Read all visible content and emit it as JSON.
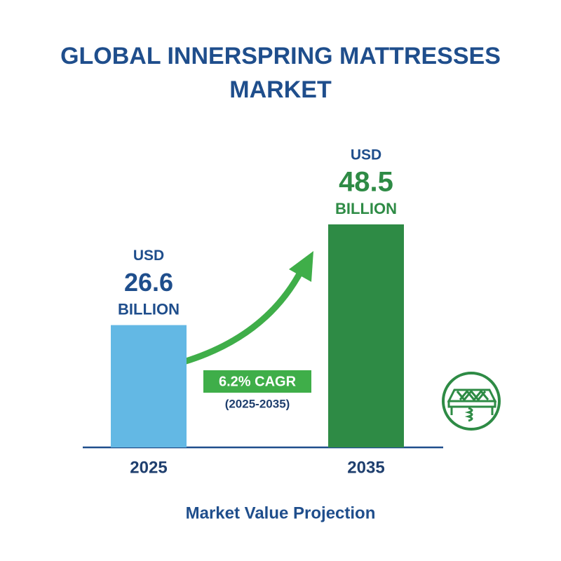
{
  "chart_data": {
    "type": "bar",
    "title": [
      "GLOBAL INNERSPRING MATTRESSES",
      "MARKET"
    ],
    "categories": [
      "2025",
      "2035"
    ],
    "values": [
      26.6,
      48.5
    ],
    "value_prefix": "USD",
    "value_suffix": "BILLION",
    "colors": [
      "#63b8e4",
      "#2e8b45"
    ],
    "annotations": [
      "6.2% CAGR",
      "(2025-2035)"
    ],
    "xlabel": "Market Value Projection"
  }
}
